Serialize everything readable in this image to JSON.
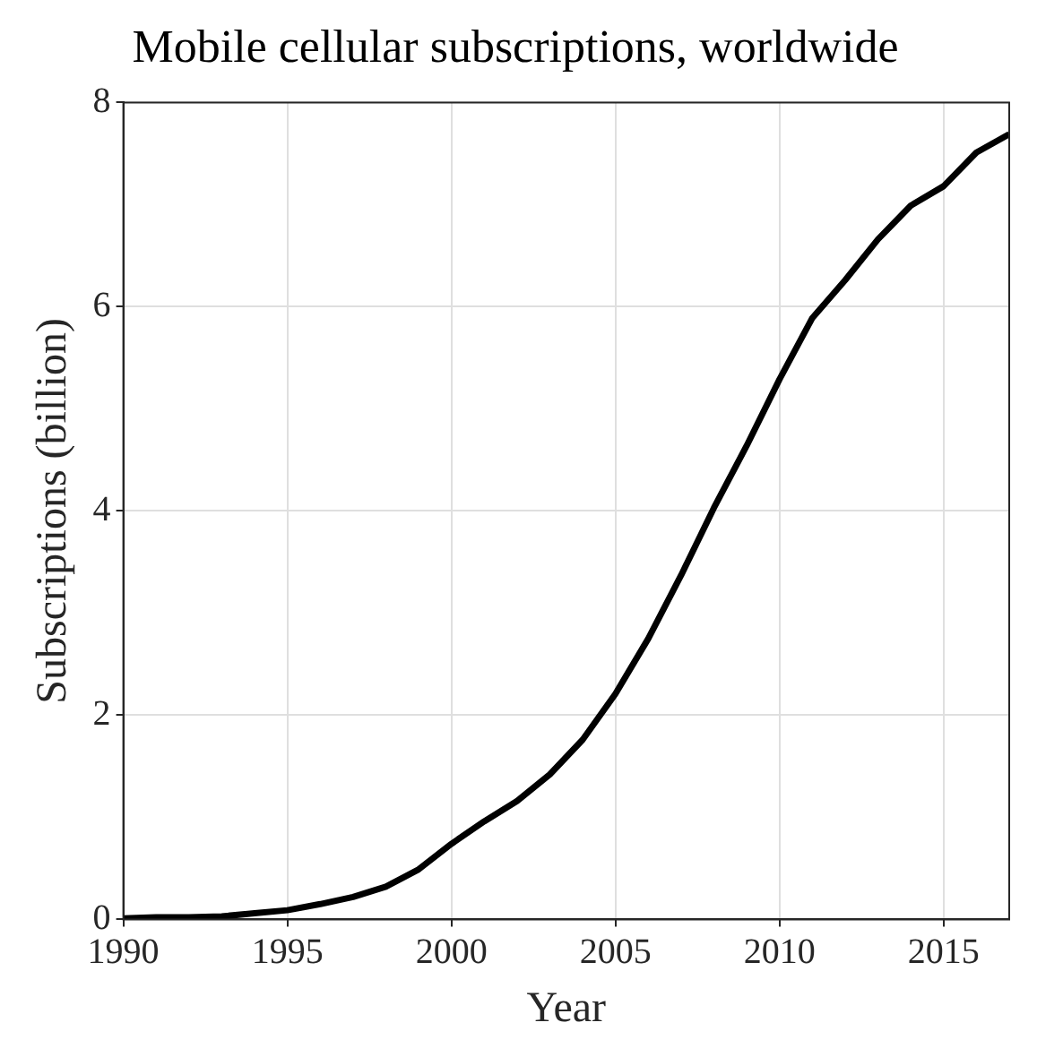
{
  "chart_data": {
    "type": "line",
    "title": "Mobile cellular subscriptions, worldwide",
    "xlabel": "Year",
    "ylabel": "Subscriptions (billion)",
    "x": [
      1990,
      1991,
      1992,
      1993,
      1994,
      1995,
      1996,
      1997,
      1998,
      1999,
      2000,
      2001,
      2002,
      2003,
      2004,
      2005,
      2006,
      2007,
      2008,
      2009,
      2010,
      2011,
      2012,
      2013,
      2014,
      2015,
      2016,
      2017
    ],
    "series": [
      {
        "color": "#000000",
        "values": [
          0.01,
          0.02,
          0.02,
          0.03,
          0.06,
          0.09,
          0.15,
          0.22,
          0.32,
          0.49,
          0.74,
          0.96,
          1.16,
          1.42,
          1.76,
          2.21,
          2.75,
          3.37,
          4.03,
          4.64,
          5.29,
          5.89,
          6.26,
          6.66,
          6.99,
          7.18,
          7.51,
          7.69
        ]
      }
    ],
    "xlim": [
      1990,
      2017
    ],
    "xticks": [
      1990,
      1995,
      2000,
      2005,
      2010,
      2015
    ],
    "ylim": [
      0,
      8
    ],
    "yticks": [
      0,
      2,
      4,
      6,
      8
    ],
    "grid": true,
    "legend": false,
    "marker": "none",
    "line_style": "solid"
  }
}
